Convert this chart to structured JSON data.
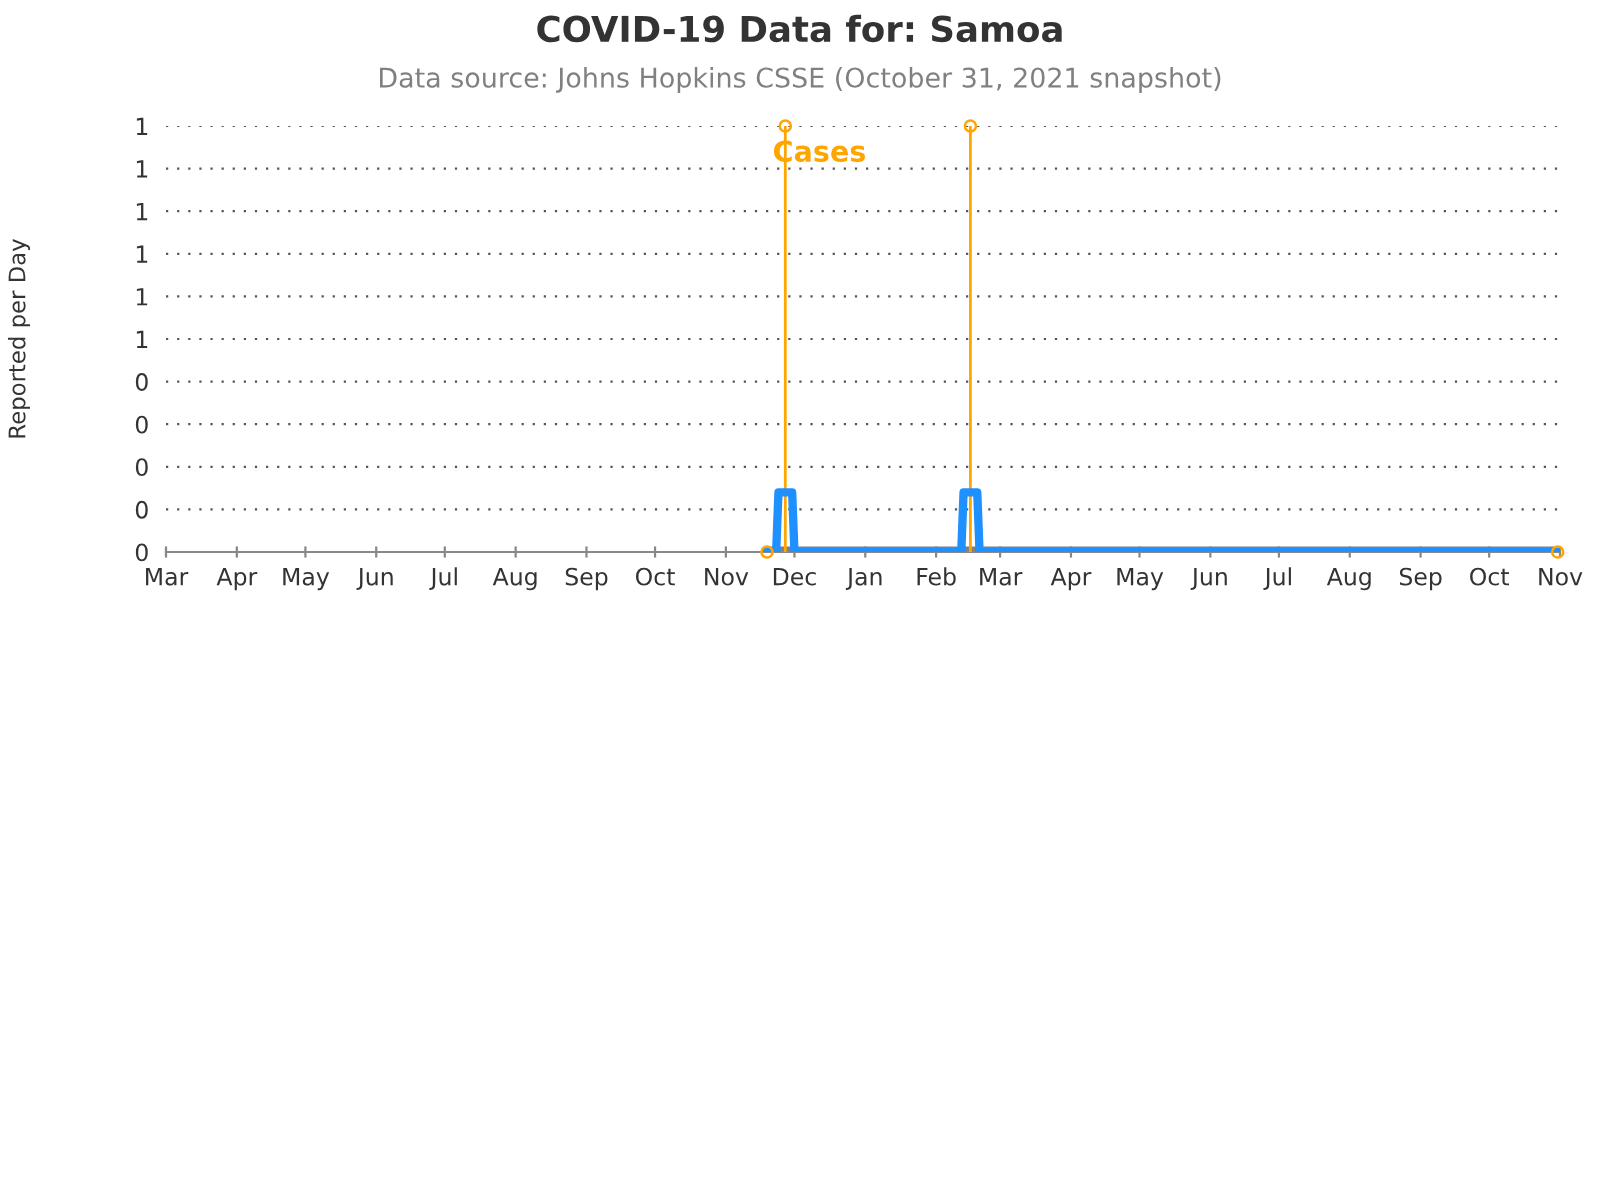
{
  "chart_data": {
    "type": "line",
    "title": "COVID-19 Data for: Samoa",
    "subtitle": "Data source: Johns Hopkins CSSE (October 31, 2021 snapshot)",
    "ylabel": "Reported per Day",
    "xlim": [
      "2020-03-01",
      "2021-11-01"
    ],
    "xticks": [
      {
        "value": "2020-03-01",
        "label": "Mar"
      },
      {
        "value": "2020-04-01",
        "label": "Apr"
      },
      {
        "value": "2020-05-01",
        "label": "May"
      },
      {
        "value": "2020-06-01",
        "label": "Jun"
      },
      {
        "value": "2020-07-01",
        "label": "Jul"
      },
      {
        "value": "2020-08-01",
        "label": "Aug"
      },
      {
        "value": "2020-09-01",
        "label": "Sep"
      },
      {
        "value": "2020-10-01",
        "label": "Oct"
      },
      {
        "value": "2020-11-01",
        "label": "Nov"
      },
      {
        "value": "2020-12-01",
        "label": "Dec"
      },
      {
        "value": "2021-01-01",
        "label": "Jan"
      },
      {
        "value": "2021-02-01",
        "label": "Feb"
      },
      {
        "value": "2021-03-01",
        "label": "Mar"
      },
      {
        "value": "2021-04-01",
        "label": "Apr"
      },
      {
        "value": "2021-05-01",
        "label": "May"
      },
      {
        "value": "2021-06-01",
        "label": "Jun"
      },
      {
        "value": "2021-07-01",
        "label": "Jul"
      },
      {
        "value": "2021-08-01",
        "label": "Aug"
      },
      {
        "value": "2021-09-01",
        "label": "Sep"
      },
      {
        "value": "2021-10-01",
        "label": "Oct"
      },
      {
        "value": "2021-11-01",
        "label": "Nov"
      }
    ],
    "ylim": [
      0,
      1
    ],
    "yticks": [
      {
        "value": 0,
        "label": "0"
      },
      {
        "value": 0.1,
        "label": "0"
      },
      {
        "value": 0.2,
        "label": "0"
      },
      {
        "value": 0.3,
        "label": "0"
      },
      {
        "value": 0.4,
        "label": "0"
      },
      {
        "value": 0.5,
        "label": "1"
      },
      {
        "value": 0.6,
        "label": "1"
      },
      {
        "value": 0.7,
        "label": "1"
      },
      {
        "value": 0.8,
        "label": "1"
      },
      {
        "value": 0.9,
        "label": "1"
      },
      {
        "value": 1,
        "label": "1"
      }
    ],
    "grid": "y",
    "series": [
      {
        "type": "lollipop",
        "name": "Cases",
        "color": "#ffa500",
        "marker": "circle",
        "x": [
          "2020-11-19",
          "2020-11-27",
          "2021-02-16",
          "2021-10-31"
        ],
        "values": [
          0,
          1,
          1,
          0
        ]
      },
      {
        "color": "#1e90ff",
        "x": [
          "2020-11-19",
          "2020-11-23",
          "2020-11-24",
          "2020-11-30",
          "2020-12-01",
          "2021-02-12",
          "2021-02-13",
          "2021-02-19",
          "2021-02-20",
          "2021-10-31"
        ],
        "values": [
          0,
          0,
          0.14,
          0.14,
          0,
          0,
          0.14,
          0.14,
          0,
          0
        ]
      }
    ]
  }
}
